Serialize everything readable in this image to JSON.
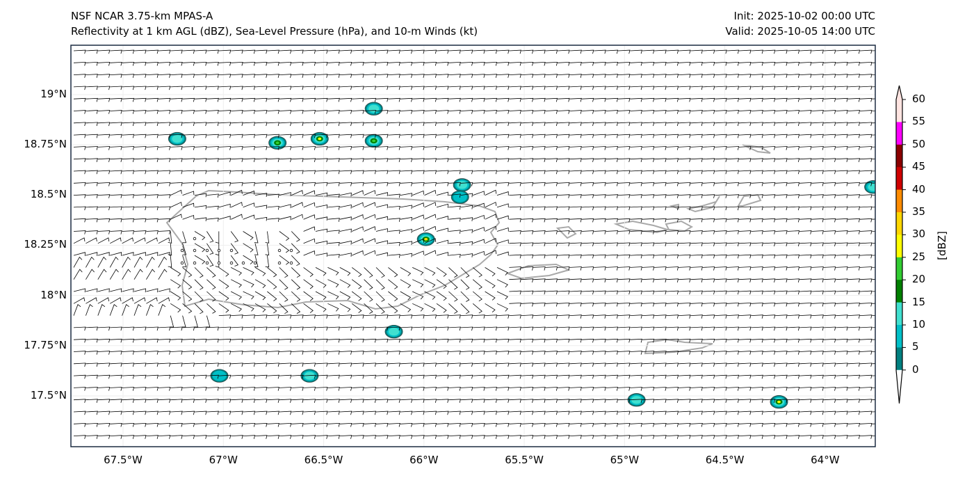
{
  "title": {
    "line1": "NSF NCAR 3.75-km MPAS-A",
    "line2": "Reflectivity at 1 km AGL (dBZ), Sea-Level Pressure (hPa), and 10-m Winds (kt)",
    "init": "Init: 2025-10-02 00:00 UTC",
    "valid": "Valid: 2025-10-05 14:00 UTC"
  },
  "map": {
    "lat_ticks": [
      {
        "v": 19,
        "label": "19°N"
      },
      {
        "v": 18.75,
        "label": "18.75°N"
      },
      {
        "v": 18.5,
        "label": "18.5°N"
      },
      {
        "v": 18.25,
        "label": "18.25°N"
      },
      {
        "v": 18,
        "label": "18°N"
      },
      {
        "v": 17.75,
        "label": "17.75°N"
      },
      {
        "v": 17.5,
        "label": "17.5°N"
      }
    ],
    "lon_ticks": [
      {
        "v": -67.5,
        "label": "67.5°W"
      },
      {
        "v": -67,
        "label": "67°W"
      },
      {
        "v": -66.5,
        "label": "66.5°W"
      },
      {
        "v": -66,
        "label": "66°W"
      },
      {
        "v": -65.5,
        "label": "65.5°W"
      },
      {
        "v": -65,
        "label": "65°W"
      },
      {
        "v": -64.5,
        "label": "64.5°W"
      },
      {
        "v": -64,
        "label": "64°W"
      }
    ],
    "extent": {
      "lon_min": -67.76,
      "lon_max": -63.75,
      "lat_min": 17.247,
      "lat_max": 19.246
    },
    "coast_color": "#a9a9a9",
    "cells": [
      {
        "lon": -67.23,
        "lat": 18.78,
        "dbz": 10
      },
      {
        "lon": -66.73,
        "lat": 18.76,
        "dbz": 20
      },
      {
        "lon": -66.52,
        "lat": 18.78,
        "dbz": 25
      },
      {
        "lon": -66.25,
        "lat": 18.77,
        "dbz": 20
      },
      {
        "lon": -66.25,
        "lat": 18.93,
        "dbz": 10
      },
      {
        "lon": -65.81,
        "lat": 18.55,
        "dbz": 10
      },
      {
        "lon": -65.82,
        "lat": 18.49,
        "dbz": 5
      },
      {
        "lon": -65.99,
        "lat": 18.28,
        "dbz": 30
      },
      {
        "lon": -66.15,
        "lat": 17.82,
        "dbz": 10
      },
      {
        "lon": -67.02,
        "lat": 17.6,
        "dbz": 5
      },
      {
        "lon": -66.57,
        "lat": 17.6,
        "dbz": 10
      },
      {
        "lon": -64.94,
        "lat": 17.48,
        "dbz": 10
      },
      {
        "lon": -64.23,
        "lat": 17.47,
        "dbz": 25
      },
      {
        "lon": -63.76,
        "lat": 18.54,
        "dbz": 10
      }
    ]
  },
  "colorbar": {
    "label": "[dBZ]",
    "ticks": [
      "0",
      "5",
      "10",
      "15",
      "20",
      "25",
      "30",
      "35",
      "40",
      "45",
      "50",
      "55",
      "60"
    ],
    "colors": [
      "#008080",
      "#00c0c8",
      "#40e0d0",
      "#008000",
      "#32cd32",
      "#ffff00",
      "#ffd700",
      "#ff8c00",
      "#d00000",
      "#8b0000",
      "#ff00ff",
      "#ffe4e1"
    ],
    "under_color": "#ffffff",
    "over_color": "#ffe4e1"
  }
}
